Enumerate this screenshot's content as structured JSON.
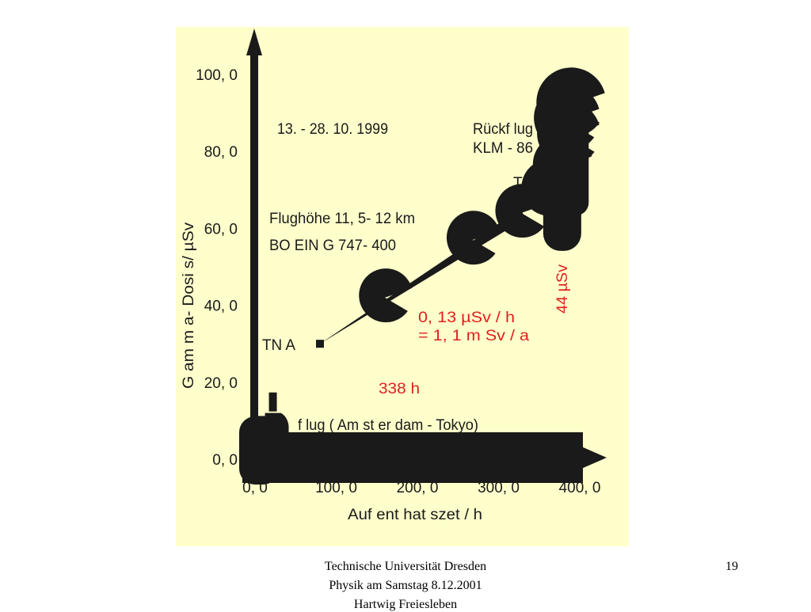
{
  "colors": {
    "panel_bg": "#ffffcc",
    "ink": "#1a1a1a",
    "accent_red": "#e0201e"
  },
  "chart_data": {
    "type": "scatter",
    "xlabel": "Auf ent hat szet   /   h",
    "ylabel": "G am m a- Dosi s/ µSv",
    "xlim": [
      0,
      400
    ],
    "ylim": [
      0,
      100
    ],
    "x_ticks": [
      0,
      100,
      200,
      300,
      400
    ],
    "x_tick_labels": [
      "0, 0",
      "100, 0",
      "200, 0",
      "300, 0",
      "400, 0"
    ],
    "y_ticks": [
      0,
      20,
      40,
      60,
      80,
      100
    ],
    "y_tick_labels": [
      "0, 0",
      "20, 0",
      "40, 0",
      "60, 0",
      "80, 0",
      "100, 0"
    ],
    "series": [
      {
        "x": [
          5,
          22,
          80,
          160,
          268,
          328,
          362,
          378,
          385,
          383,
          388
        ],
        "y": [
          3,
          12,
          30,
          42,
          57,
          64,
          70,
          76,
          84,
          88,
          92
        ]
      }
    ],
    "annotations": {
      "period": "13. - 28. 10. 1999",
      "altitude": "Flughöhe  11, 5- 12  km",
      "aircraft": "BO EIN G   747- 400",
      "return_flight": "Rückf lug",
      "return_flight_no": "KLM - 86",
      "tna": "TN A",
      "t_partial": "T",
      "outbound_flight": "f lug  ( Am st er dam - Tokyo)",
      "rate_per_hour": "0, 13  µSv  /   h",
      "rate_per_year": "=    1, 1  m Sv  / a",
      "total_hours": "338  h",
      "total_dose": "44  µSv"
    }
  },
  "footer": {
    "line1": "Technische Universität Dresden",
    "line2": "Physik am Samstag   8.12.2001",
    "line3": "Hartwig Freiesleben",
    "page_number": "19"
  }
}
